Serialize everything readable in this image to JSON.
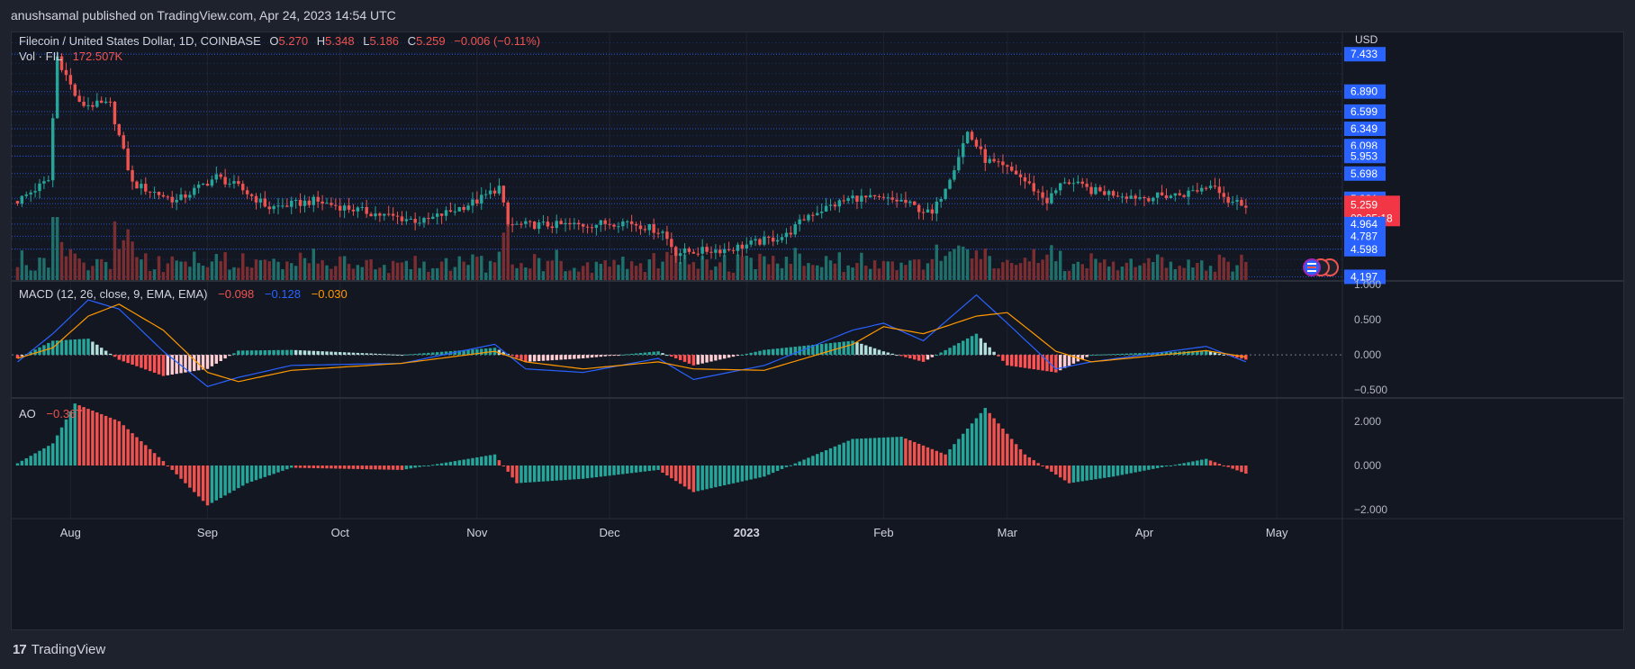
{
  "header": {
    "publisher_line": "anushsamal published on TradingView.com, Apr 24, 2023 14:54 UTC"
  },
  "footer": {
    "brand": "TradingView",
    "logo_glyph": "17"
  },
  "legend": {
    "symbol": "Filecoin / United States Dollar, 1D, COINBASE",
    "open_label": "O",
    "open": "5.270",
    "high_label": "H",
    "high": "5.348",
    "low_label": "L",
    "low": "5.186",
    "close_label": "C",
    "close": "5.259",
    "change": "−0.006 (−0.11%)",
    "vol_label": "Vol · FIL",
    "vol": "172.507K",
    "macd_label": "MACD (12, 26, close, 9, EMA, EMA)",
    "macd_v1": "−0.098",
    "macd_v2": "−0.128",
    "macd_v3": "−0.030",
    "ao_label": "AO",
    "ao_v": "−0.367"
  },
  "colors": {
    "up": "#26a69a",
    "down": "#ef5350",
    "up_vol": "#1f6f6a",
    "down_vol": "#7a2e31",
    "macd_line": "#2962ff",
    "signal_line": "#ff9800",
    "badge": "#2962ff",
    "last_badge": "#f23645"
  },
  "chart_data": [
    {
      "type": "candlestick",
      "title": "Filecoin / United States Dollar, 1D, COINBASE",
      "currency": "USD",
      "x_labels": [
        "Aug",
        "Sep",
        "Oct",
        "Nov",
        "Dec",
        "2023",
        "Feb",
        "Mar",
        "Apr",
        "May"
      ],
      "price_axis_labels": [
        "7.433",
        "6.890",
        "6.599",
        "6.349",
        "6.098",
        "5.953",
        "5.698",
        "5.331",
        "5.259",
        "4.964",
        "4.787",
        "4.598",
        "4.197"
      ],
      "last_price": "5.259",
      "countdown": "09:05:18",
      "anchors": [
        {
          "date": "Jul 20",
          "close": 5.3
        },
        {
          "date": "Jul 27",
          "close": 5.6
        },
        {
          "date": "Jul 29",
          "close": 7.4
        },
        {
          "date": "Aug 3",
          "close": 6.7
        },
        {
          "date": "Aug 10",
          "close": 6.7
        },
        {
          "date": "Aug 15",
          "close": 5.55
        },
        {
          "date": "Aug 25",
          "close": 5.3
        },
        {
          "date": "Sep 3",
          "close": 5.65
        },
        {
          "date": "Sep 8",
          "close": 5.5
        },
        {
          "date": "Sep 15",
          "close": 5.2
        },
        {
          "date": "Sep 25",
          "close": 5.3
        },
        {
          "date": "Oct 10",
          "close": 5.1
        },
        {
          "date": "Oct 20",
          "close": 5.0
        },
        {
          "date": "Nov 1",
          "close": 5.3
        },
        {
          "date": "Nov 6",
          "close": 5.5
        },
        {
          "date": "Nov 8",
          "close": 4.95
        },
        {
          "date": "Nov 25",
          "close": 4.95
        },
        {
          "date": "Dec 5",
          "close": 5.0
        },
        {
          "date": "Dec 13",
          "close": 4.85
        },
        {
          "date": "Dec 16",
          "close": 4.55
        },
        {
          "date": "Dec 28",
          "close": 4.6
        },
        {
          "date": "Jan 10",
          "close": 4.8
        },
        {
          "date": "Jan 15",
          "close": 5.1
        },
        {
          "date": "Jan 25",
          "close": 5.35
        },
        {
          "date": "Feb 5",
          "close": 5.3
        },
        {
          "date": "Feb 12",
          "close": 5.1
        },
        {
          "date": "Feb 17",
          "close": 5.8
        },
        {
          "date": "Feb 20",
          "close": 6.3
        },
        {
          "date": "Feb 24",
          "close": 5.9
        },
        {
          "date": "Mar 3",
          "close": 5.7
        },
        {
          "date": "Mar 10",
          "close": 5.3
        },
        {
          "date": "Mar 14",
          "close": 5.6
        },
        {
          "date": "Mar 20",
          "close": 5.45
        },
        {
          "date": "Apr 1",
          "close": 5.35
        },
        {
          "date": "Apr 10",
          "close": 5.4
        },
        {
          "date": "Apr 17",
          "close": 5.55
        },
        {
          "date": "Apr 20",
          "close": 5.3
        },
        {
          "date": "Apr 24",
          "close": 5.259
        }
      ]
    },
    {
      "type": "line",
      "title": "MACD (12, 26, close, 9, EMA, EMA)",
      "y_axis_labels": [
        "1.000",
        "0.500",
        "0.000",
        "−0.500"
      ],
      "series": [
        {
          "name": "MACD"
        },
        {
          "name": "Signal"
        }
      ],
      "anchors": [
        {
          "date": "Jul 20",
          "macd": -0.1,
          "signal": -0.05
        },
        {
          "date": "Jul 28",
          "macd": 0.3,
          "signal": 0.1
        },
        {
          "date": "Aug 5",
          "macd": 0.78,
          "signal": 0.55
        },
        {
          "date": "Aug 12",
          "macd": 0.65,
          "signal": 0.72
        },
        {
          "date": "Aug 22",
          "macd": 0.05,
          "signal": 0.35
        },
        {
          "date": "Sep 1",
          "macd": -0.45,
          "signal": -0.25
        },
        {
          "date": "Sep 8",
          "macd": -0.32,
          "signal": -0.38
        },
        {
          "date": "Sep 20",
          "macd": -0.15,
          "signal": -0.22
        },
        {
          "date": "Oct 15",
          "macd": -0.12,
          "signal": -0.12
        },
        {
          "date": "Nov 5",
          "macd": 0.15,
          "signal": 0.05
        },
        {
          "date": "Nov 12",
          "macd": -0.2,
          "signal": -0.1
        },
        {
          "date": "Nov 25",
          "macd": -0.25,
          "signal": -0.2
        },
        {
          "date": "Dec 12",
          "macd": -0.05,
          "signal": -0.1
        },
        {
          "date": "Dec 20",
          "macd": -0.35,
          "signal": -0.2
        },
        {
          "date": "Jan 5",
          "macd": -0.15,
          "signal": -0.22
        },
        {
          "date": "Jan 25",
          "macd": 0.35,
          "signal": 0.15
        },
        {
          "date": "Feb 1",
          "macd": 0.45,
          "signal": 0.4
        },
        {
          "date": "Feb 10",
          "macd": 0.2,
          "signal": 0.3
        },
        {
          "date": "Feb 22",
          "macd": 0.85,
          "signal": 0.55
        },
        {
          "date": "Mar 1",
          "macd": 0.45,
          "signal": 0.6
        },
        {
          "date": "Mar 12",
          "macd": -0.2,
          "signal": 0.05
        },
        {
          "date": "Mar 20",
          "macd": -0.1,
          "signal": -0.1
        },
        {
          "date": "Apr 15",
          "macd": 0.12,
          "signal": 0.06
        },
        {
          "date": "Apr 24",
          "macd": -0.098,
          "signal": -0.03
        }
      ]
    },
    {
      "type": "bar",
      "title": "AO",
      "y_axis_labels": [
        "2.000",
        "0.000",
        "−2.000"
      ],
      "anchors": [
        {
          "date": "Jul 20",
          "ao": 0.1
        },
        {
          "date": "Jul 28",
          "ao": 1.0
        },
        {
          "date": "Aug 2",
          "ao": 2.8
        },
        {
          "date": "Aug 12",
          "ao": 2.0
        },
        {
          "date": "Aug 22",
          "ao": 0.2
        },
        {
          "date": "Sep 1",
          "ao": -1.8
        },
        {
          "date": "Sep 10",
          "ao": -0.8
        },
        {
          "date": "Sep 20",
          "ao": -0.1
        },
        {
          "date": "Oct 15",
          "ao": -0.2
        },
        {
          "date": "Nov 5",
          "ao": 0.5
        },
        {
          "date": "Nov 10",
          "ao": -0.8
        },
        {
          "date": "Nov 25",
          "ao": -0.6
        },
        {
          "date": "Dec 12",
          "ao": -0.2
        },
        {
          "date": "Dec 20",
          "ao": -1.2
        },
        {
          "date": "Jan 5",
          "ao": -0.5
        },
        {
          "date": "Jan 25",
          "ao": 1.2
        },
        {
          "date": "Feb 5",
          "ao": 1.3
        },
        {
          "date": "Feb 15",
          "ao": 0.5
        },
        {
          "date": "Feb 24",
          "ao": 2.6
        },
        {
          "date": "Mar 5",
          "ao": 0.5
        },
        {
          "date": "Mar 15",
          "ao": -0.8
        },
        {
          "date": "Mar 25",
          "ao": -0.5
        },
        {
          "date": "Apr 15",
          "ao": 0.3
        },
        {
          "date": "Apr 24",
          "ao": -0.367
        }
      ]
    }
  ]
}
